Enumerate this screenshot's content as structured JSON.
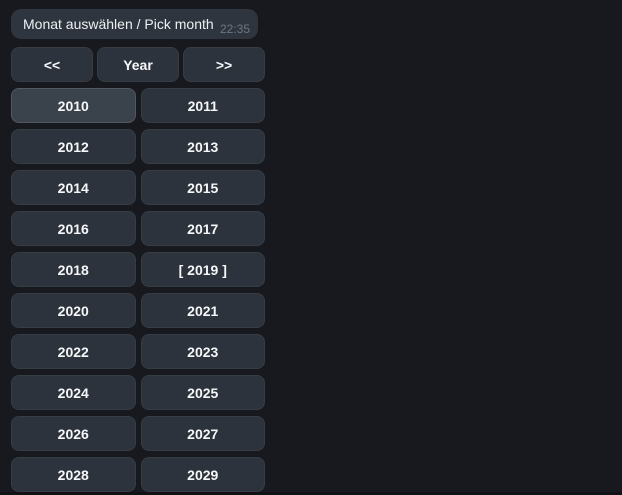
{
  "theme": {
    "background": "#17191e",
    "bubble_bg": "#2e353e",
    "button_bg": "#2c333c",
    "button_hover_bg": "#3a424c",
    "button_border": "rgba(255,255,255,0.05)",
    "button_text_color": "#f6f7f8",
    "text_color": "#eef1f4",
    "timestamp_color": "#6d7680",
    "bottom_bar": "#101216"
  },
  "message": {
    "text": "Monat auswählen / Pick month",
    "timestamp": "22:35"
  },
  "keyboard": {
    "nav": [
      {
        "id": "prev",
        "label": "<<"
      },
      {
        "id": "year",
        "label": "Year"
      },
      {
        "id": "next",
        "label": ">>"
      }
    ],
    "years": [
      {
        "value": "2010",
        "label": "2010",
        "hover": true
      },
      {
        "value": "2011",
        "label": "2011"
      },
      {
        "value": "2012",
        "label": "2012"
      },
      {
        "value": "2013",
        "label": "2013"
      },
      {
        "value": "2014",
        "label": "2014"
      },
      {
        "value": "2015",
        "label": "2015"
      },
      {
        "value": "2016",
        "label": "2016"
      },
      {
        "value": "2017",
        "label": "2017"
      },
      {
        "value": "2018",
        "label": "2018"
      },
      {
        "value": "2019",
        "label": "[ 2019 ]",
        "selected": true
      },
      {
        "value": "2020",
        "label": "2020"
      },
      {
        "value": "2021",
        "label": "2021"
      },
      {
        "value": "2022",
        "label": "2022"
      },
      {
        "value": "2023",
        "label": "2023"
      },
      {
        "value": "2024",
        "label": "2024"
      },
      {
        "value": "2025",
        "label": "2025"
      },
      {
        "value": "2026",
        "label": "2026"
      },
      {
        "value": "2027",
        "label": "2027"
      },
      {
        "value": "2028",
        "label": "2028"
      },
      {
        "value": "2029",
        "label": "2029"
      }
    ]
  }
}
